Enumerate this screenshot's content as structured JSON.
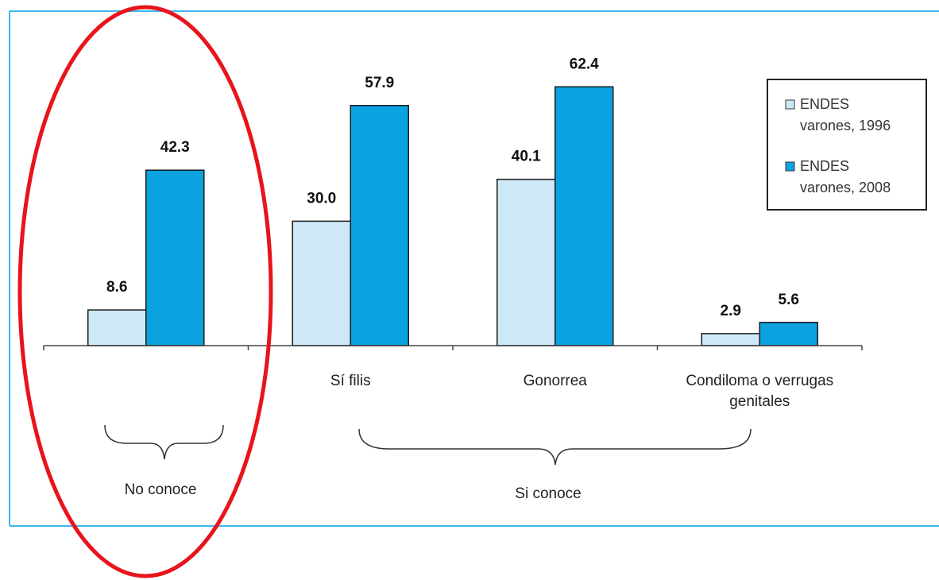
{
  "chart_data": {
    "type": "bar",
    "title": "",
    "xlabel": "",
    "ylabel": "",
    "ylim": [
      0,
      70
    ],
    "grid": false,
    "legend_placement": "top-right",
    "categories": [
      "",
      "Sífilis",
      "Gonorrea",
      "Condiloma o verrugas genitales"
    ],
    "category_lines": [
      [
        ""
      ],
      [
        "Sí filis"
      ],
      [
        "Gonorrea"
      ],
      [
        "Condiloma o verrugas",
        "genitales"
      ]
    ],
    "series": [
      {
        "name": "ENDES varones, 1996",
        "legend_lines": [
          "ENDES",
          "varones, 1996"
        ],
        "values": [
          8.6,
          30.0,
          40.1,
          2.9
        ],
        "labels": [
          "8.6",
          "30.0",
          "40.1",
          "2.9"
        ],
        "color": "#cde9f8"
      },
      {
        "name": "ENDES varones, 2008",
        "legend_lines": [
          "ENDES",
          "varones, 2008"
        ],
        "values": [
          42.3,
          57.9,
          62.4,
          5.6
        ],
        "labels": [
          "42.3",
          "57.9",
          "62.4",
          "5.6"
        ],
        "color": "#0aa3e0"
      }
    ],
    "groups": [
      {
        "label": "No conoce",
        "categories": [
          0
        ]
      },
      {
        "label": "Si conoce",
        "categories": [
          1,
          2,
          3
        ]
      }
    ],
    "frame_color": "#3db8ec",
    "highlight_color": "#e8141c"
  }
}
